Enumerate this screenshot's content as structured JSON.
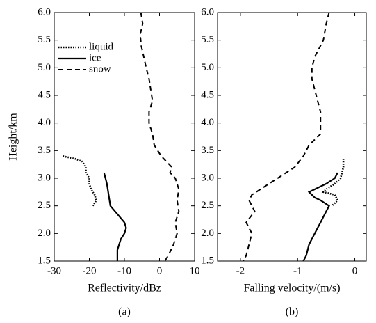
{
  "chart_data": [
    {
      "type": "line",
      "xlabel": "Reflectivity/dBz",
      "ylabel": "Height/km",
      "caption": "(a)",
      "xlim": [
        -30,
        10
      ],
      "xticks": [
        -30,
        -20,
        -10,
        0,
        10
      ],
      "ylim": [
        1.5,
        6.0
      ],
      "yticks": [
        1.5,
        {
          "value": 2,
          "label": "2.0"
        },
        2.5,
        {
          "value": 3,
          "label": "3.0"
        },
        3.5,
        {
          "value": 4,
          "label": "4.0"
        },
        4.5,
        {
          "value": 5,
          "label": "5.0"
        },
        5.5,
        {
          "value": 6,
          "label": "6.0"
        }
      ],
      "legend": "upper left",
      "series": [
        {
          "name": "liquid",
          "color": "#000000",
          "style": "dotted",
          "x": [
            -27.5,
            -24,
            -22,
            -21,
            -21,
            -20,
            -20,
            -19.5,
            -18.5,
            -18,
            -18.5,
            -19
          ],
          "y": [
            3.4,
            3.35,
            3.3,
            3.2,
            3.1,
            3.0,
            2.9,
            2.8,
            2.7,
            2.6,
            2.55,
            2.5
          ]
        },
        {
          "name": "ice",
          "color": "#000000",
          "style": "solid",
          "x": [
            -15.8,
            -15,
            -14.5,
            -14,
            -12,
            -10,
            -9.5,
            -10,
            -11,
            -12,
            -12
          ],
          "y": [
            3.1,
            2.9,
            2.7,
            2.5,
            2.35,
            2.2,
            2.1,
            2.0,
            1.9,
            1.7,
            1.5
          ]
        },
        {
          "name": "snow",
          "color": "#000000",
          "style": "dashed",
          "x": [
            -5.3,
            -4.8,
            -5.5,
            -5.2,
            -4.5,
            -3.8,
            -3,
            -2.5,
            -2,
            -3,
            -3,
            -2,
            -1.5,
            0.5,
            2,
            3.5,
            3,
            4.5,
            5.5,
            5,
            5.5,
            4.5,
            5,
            4,
            2.5,
            1.5
          ],
          "y": [
            6.0,
            5.8,
            5.6,
            5.4,
            5.2,
            5.0,
            4.8,
            4.6,
            4.4,
            4.2,
            4.0,
            3.8,
            3.6,
            3.4,
            3.3,
            3.2,
            3.1,
            3.0,
            2.8,
            2.6,
            2.4,
            2.2,
            2.0,
            1.8,
            1.6,
            1.5
          ]
        }
      ]
    },
    {
      "type": "line",
      "xlabel": "Falling velocity/(m/s)",
      "caption": "(b)",
      "xlim": [
        -2.4,
        0.2
      ],
      "xticks": [
        -2,
        -1,
        0
      ],
      "ylim": [
        1.5,
        6.0
      ],
      "yticks": [
        1.5,
        {
          "value": 2,
          "label": "2.0"
        },
        2.5,
        {
          "value": 3,
          "label": "3.0"
        },
        3.5,
        {
          "value": 4,
          "label": "4.0"
        },
        4.5,
        {
          "value": 5,
          "label": "5.0"
        },
        5.5,
        {
          "value": 6,
          "label": "6.0"
        }
      ],
      "series": [
        {
          "color": "#000000",
          "style": "dotted",
          "x": [
            -0.2,
            -0.2,
            -0.25,
            -0.35,
            -0.5,
            -0.55,
            -0.35,
            -0.3,
            -0.4
          ],
          "y": [
            3.35,
            3.2,
            3.0,
            2.9,
            2.8,
            2.75,
            2.7,
            2.6,
            2.5
          ]
        },
        {
          "color": "#000000",
          "style": "solid",
          "x": [
            -0.3,
            -0.35,
            -0.5,
            -0.7,
            -0.8,
            -0.75,
            -0.7,
            -0.6,
            -0.45,
            -0.5,
            -0.6,
            -0.7,
            -0.8,
            -0.85,
            -0.9
          ],
          "y": [
            3.1,
            3.0,
            2.9,
            2.8,
            2.75,
            2.7,
            2.65,
            2.6,
            2.5,
            2.4,
            2.2,
            2.0,
            1.8,
            1.6,
            1.5
          ]
        },
        {
          "color": "#000000",
          "style": "dashed",
          "x": [
            -0.45,
            -0.5,
            -0.55,
            -0.7,
            -0.75,
            -0.75,
            -0.7,
            -0.65,
            -0.6,
            -0.6,
            -0.6,
            -0.8,
            -0.9,
            -1.05,
            -1.35,
            -1.65,
            -1.8,
            -1.85,
            -1.75,
            -1.9,
            -1.8,
            -1.85,
            -1.9,
            -1.95
          ],
          "y": [
            6.0,
            5.8,
            5.5,
            5.2,
            5.0,
            4.8,
            4.6,
            4.4,
            4.2,
            4.0,
            3.8,
            3.6,
            3.4,
            3.2,
            3.0,
            2.8,
            2.7,
            2.6,
            2.4,
            2.2,
            2.0,
            1.8,
            1.6,
            1.5
          ]
        }
      ]
    }
  ]
}
